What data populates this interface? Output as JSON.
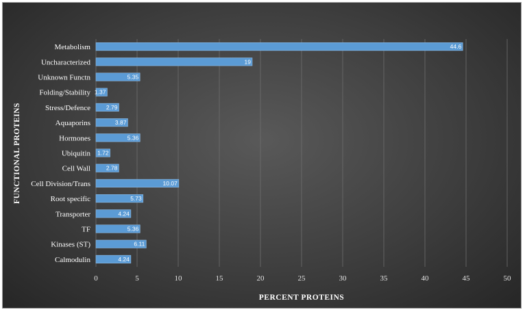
{
  "chart_data": {
    "type": "bar",
    "orientation": "horizontal",
    "categories": [
      "Metabolism",
      "Uncharacterized",
      "Unknown Functn",
      "Folding/Stability",
      "Stress/Defence",
      "Aquaporins",
      "Hormones",
      "Ubiquitin",
      "Cell Wall",
      "Cell Division/Trans",
      "Root specific",
      "Transporter",
      "TF",
      "Kinases (ST)",
      "Calmodulin"
    ],
    "values": [
      44.6,
      19,
      5.35,
      1.37,
      2.79,
      3.87,
      5.36,
      1.72,
      2.78,
      10.07,
      5.73,
      4.24,
      5.36,
      6.11,
      4.24
    ],
    "data_labels": [
      "44.6",
      "19",
      "5.35",
      "1.37",
      "2.79",
      "3.87",
      "5.36",
      "1.72",
      "2.78",
      "10.07",
      "5.73",
      "4.24",
      "5.36",
      "6.11",
      "4.24"
    ],
    "xlabel": "PERCENT PROTEINS",
    "ylabel": "FUNCTIONAL PROTEINS",
    "xlim": [
      0,
      50
    ],
    "xticks": [
      "0",
      "5",
      "10",
      "15",
      "20",
      "25",
      "30",
      "35",
      "40",
      "45",
      "50"
    ],
    "grid": true,
    "legend": "none",
    "colors": {
      "bar": "#5b9bd5",
      "bar_edge": "#8fbde8",
      "background": "#404040",
      "text": "#ffffff"
    }
  }
}
